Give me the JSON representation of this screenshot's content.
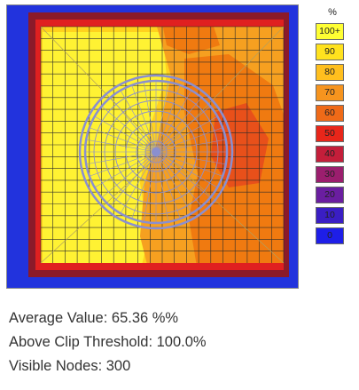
{
  "map": {
    "colors": {
      "min_band": "#2233dd",
      "border_dark": "#8b1a2a",
      "edge_red": "#e02020",
      "orange_70": "#f07a10",
      "orange_80": "#f6a020",
      "yellow_90": "#ffd21e",
      "yellow_100": "#fff233",
      "grid_line": "#2a2a2a",
      "overlay": "#8a8fd0"
    }
  },
  "legend": {
    "unit": "%",
    "bands": [
      {
        "label": "100+",
        "color": "#ffff33"
      },
      {
        "label": "90",
        "color": "#ffe21e"
      },
      {
        "label": "80",
        "color": "#ffbf1e"
      },
      {
        "label": "70",
        "color": "#f6941e"
      },
      {
        "label": "60",
        "color": "#ef6a18"
      },
      {
        "label": "50",
        "color": "#e8261a"
      },
      {
        "label": "40",
        "color": "#c41e3a"
      },
      {
        "label": "30",
        "color": "#9b1e6e"
      },
      {
        "label": "20",
        "color": "#6a1ea0"
      },
      {
        "label": "10",
        "color": "#3a1ec4"
      },
      {
        "label": "0",
        "color": "#1e1ee8"
      }
    ]
  },
  "stats": {
    "average": "Average Value: 65.36 %%",
    "above_clip": "Above Clip Threshold: 100.0%",
    "visible_nodes": "Visible Nodes: 300"
  }
}
